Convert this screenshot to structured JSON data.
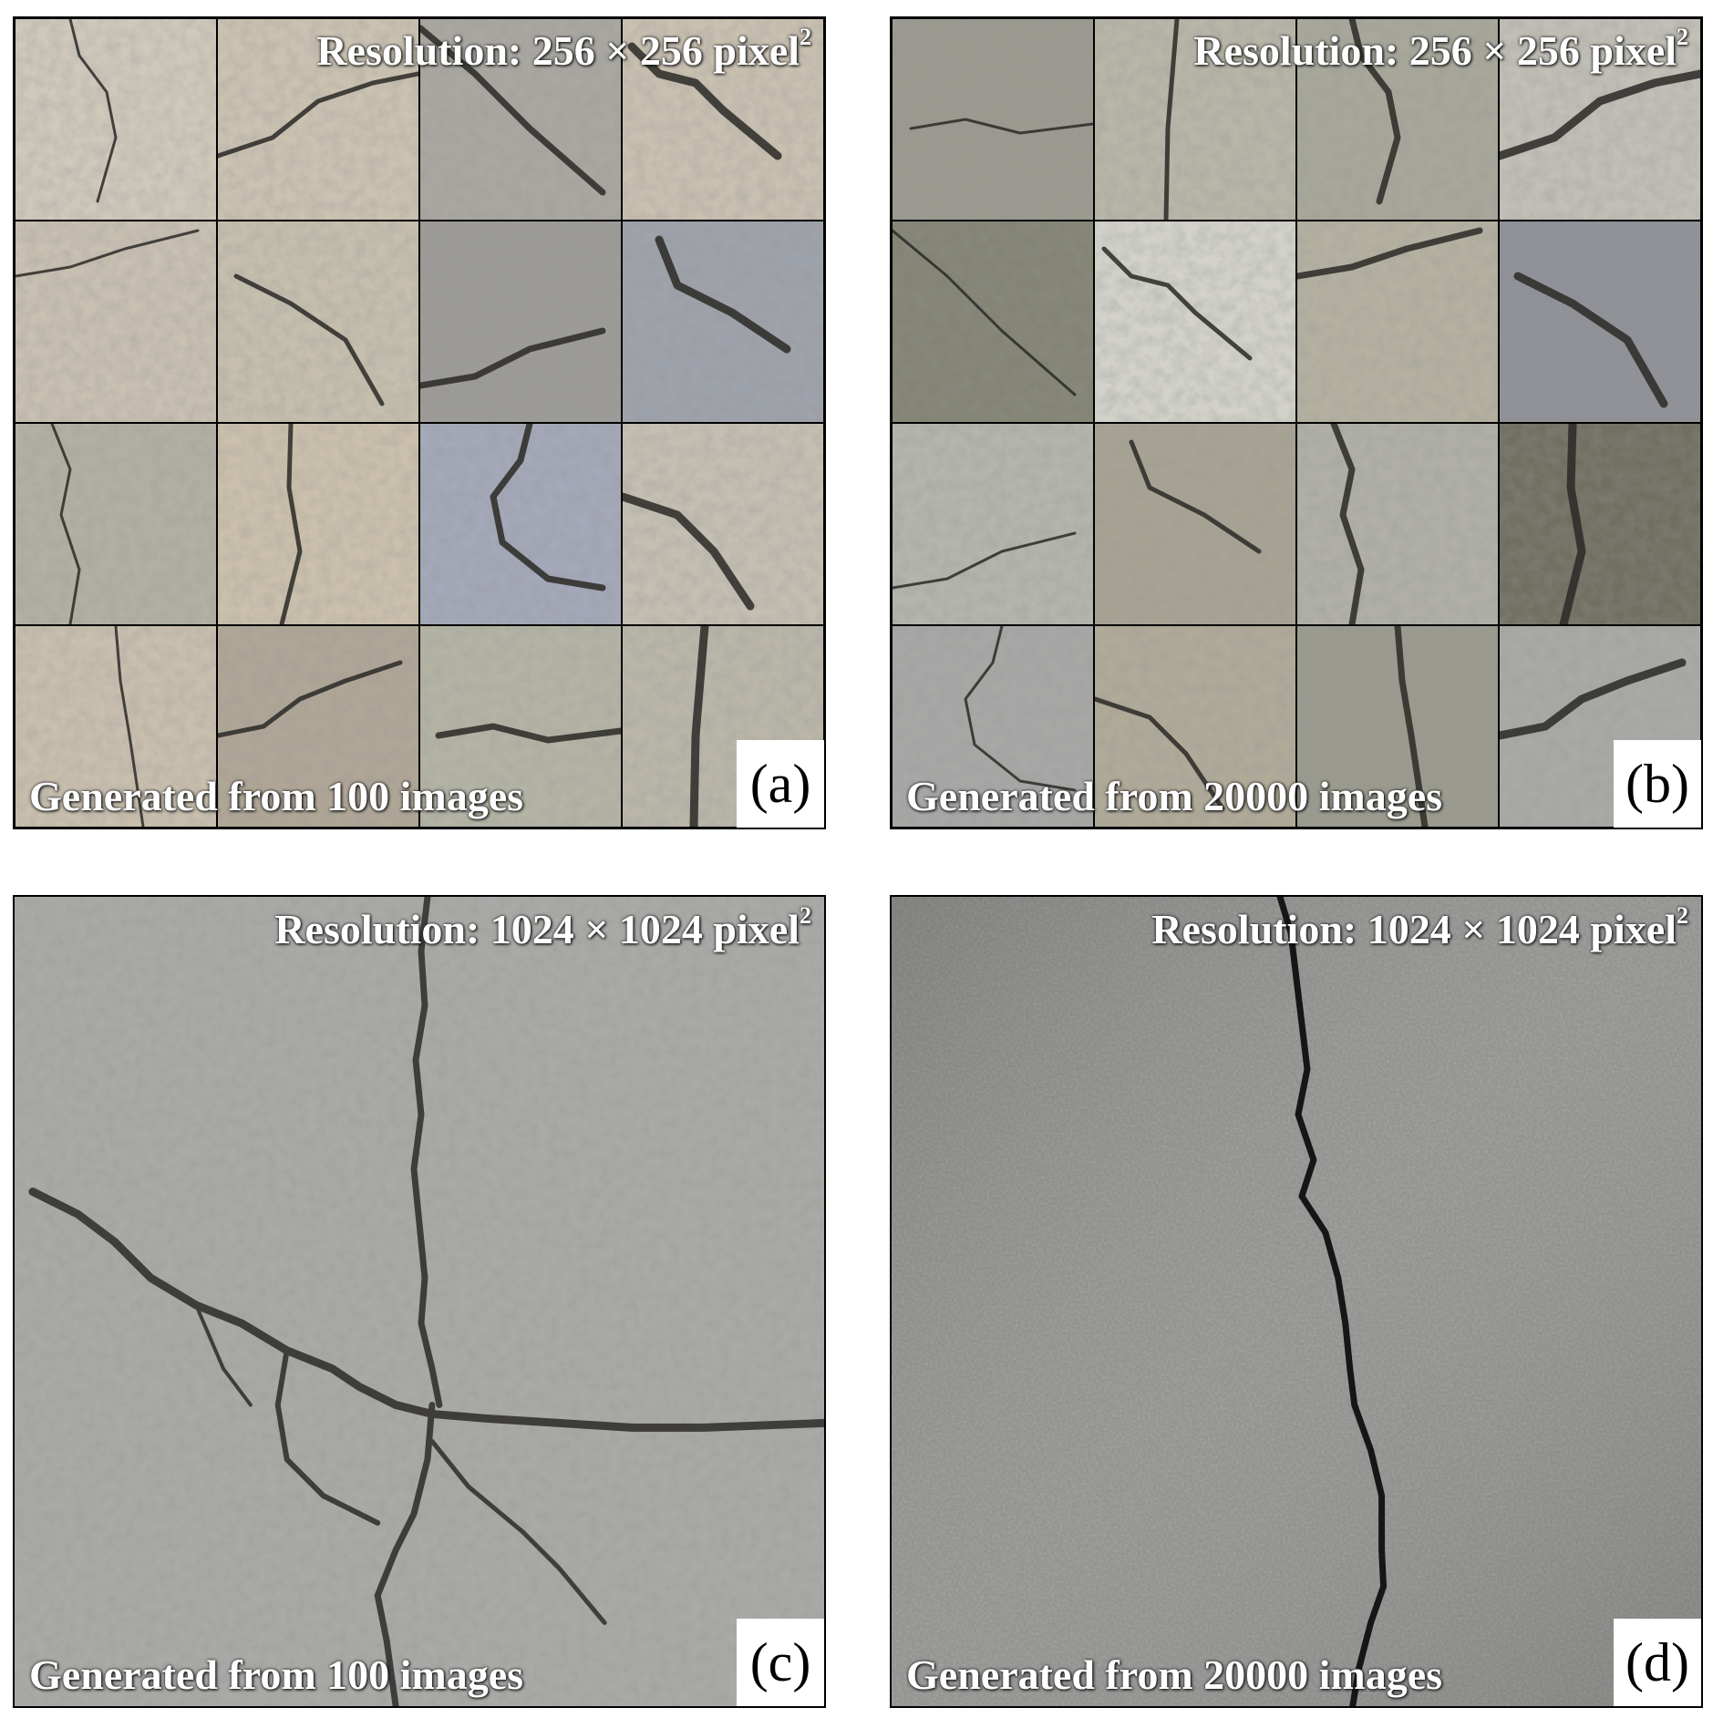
{
  "panels": [
    {
      "label": "(a)",
      "resolution_text": "Resolution: 256 × 256 pixel",
      "resolution_sup": "2",
      "generated_text": "Generated from 100 images"
    },
    {
      "label": "(b)",
      "resolution_text": "Resolution: 256 × 256 pixel",
      "resolution_sup": "2",
      "generated_text": "Generated from 20000 images"
    },
    {
      "label": "(c)",
      "resolution_text": "Resolution: 1024 × 1024 pixel",
      "resolution_sup": "2",
      "generated_text": "Generated from 100 images"
    },
    {
      "label": "(d)",
      "resolution_text": "Resolution: 1024 × 1024 pixel",
      "resolution_sup": "2",
      "generated_text": "Generated from 20000 images"
    }
  ],
  "colors": {
    "text_overlay": "#ffffff",
    "panel_a_tints": [
      "#cfc8bb",
      "#cbc2b1",
      "#a9a7a0",
      "#c9c0b0",
      "#c8c0b1",
      "#c6bfae",
      "#9c9b97",
      "#9ea2aa",
      "#b2b0a4",
      "#cbc0ac",
      "#a4a8b8",
      "#c4bfb2",
      "#c9bfae",
      "#b0a696",
      "#b4b4a5",
      "#bab6a9"
    ],
    "panel_b_tints": [
      "#9b9a90",
      "#b8b6a8",
      "#a8a79b",
      "#c1bfb6",
      "#838474",
      "#d2d2ca",
      "#b5b1a0",
      "#8f9197",
      "#b4b5ad",
      "#a7a393",
      "#b0b0a8",
      "#707062",
      "#a7a8a6",
      "#b0aa98",
      "#9b9a8e",
      "#a9aaa6"
    ],
    "panel_c_base": "#a9aaa8",
    "panel_d_base": "#8f8f8d"
  }
}
